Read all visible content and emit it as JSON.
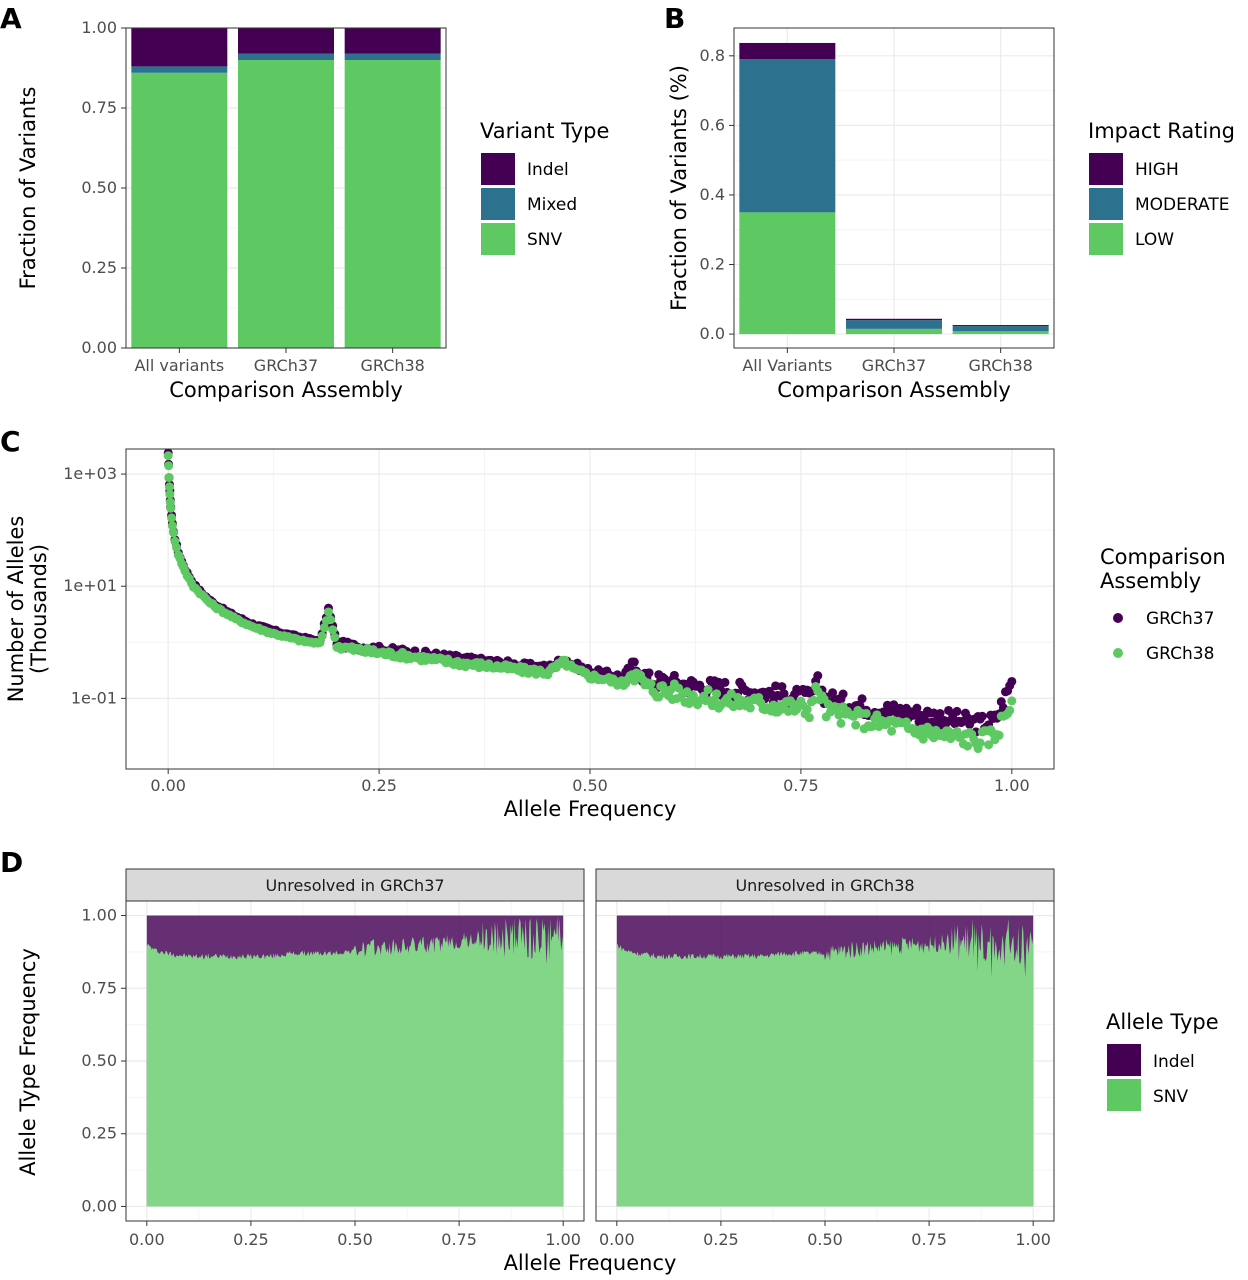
{
  "panels": {
    "A": {
      "letter": "A",
      "chart_data": {
        "type": "bar",
        "stacked": true,
        "title": "",
        "xlabel": "Comparison Assembly",
        "ylabel": "Fraction of Variants",
        "categories": [
          "All variants",
          "GRCh37",
          "GRCh38"
        ],
        "ylim": [
          0,
          1
        ],
        "yticks": [
          "0.00",
          "0.25",
          "0.50",
          "0.75",
          "1.00"
        ],
        "series": [
          {
            "name": "SNV",
            "color": "#5ec962",
            "values": [
              0.86,
              0.9,
              0.9
            ]
          },
          {
            "name": "Mixed",
            "color": "#2c728e",
            "values": [
              0.02,
              0.02,
              0.02
            ]
          },
          {
            "name": "Indel",
            "color": "#440154",
            "values": [
              0.12,
              0.08,
              0.08
            ]
          }
        ],
        "legend_title": "Variant Type",
        "legend_items": [
          "Indel",
          "Mixed",
          "SNV"
        ],
        "legend_position": "right"
      }
    },
    "B": {
      "letter": "B",
      "chart_data": {
        "type": "bar",
        "stacked": true,
        "title": "",
        "xlabel": "Comparison Assembly",
        "ylabel": "Fraction of Variants (%)",
        "categories": [
          "All Variants",
          "GRCh37",
          "GRCh38"
        ],
        "ylim": [
          0,
          0.84
        ],
        "yticks": [
          "0.0",
          "0.2",
          "0.4",
          "0.6",
          "0.8"
        ],
        "series": [
          {
            "name": "LOW",
            "color": "#5ec962",
            "values": [
              0.35,
              0.015,
              0.008
            ]
          },
          {
            "name": "MODERATE",
            "color": "#2c728e",
            "values": [
              0.44,
              0.025,
              0.015
            ]
          },
          {
            "name": "HIGH",
            "color": "#440154",
            "values": [
              0.047,
              0.004,
              0.003
            ]
          }
        ],
        "legend_title": "Impact Rating",
        "legend_items": [
          "HIGH",
          "MODERATE",
          "LOW"
        ],
        "legend_position": "right"
      }
    },
    "C": {
      "letter": "C",
      "chart_data": {
        "type": "scatter",
        "title": "",
        "xlabel": "Allele Frequency",
        "ylabel_line1": "Number of Alleles",
        "ylabel_line2": "(Thousands)",
        "yscale": "log10",
        "xlim": [
          0,
          1
        ],
        "ylim": [
          0.0055,
          2800
        ],
        "xticks": [
          "0.00",
          "0.25",
          "0.50",
          "0.75",
          "1.00"
        ],
        "yticks": [
          "1e-01",
          "1e+01",
          "1e+03"
        ],
        "legend_title_line1": "Comparison",
        "legend_title_line2": "Assembly",
        "series": [
          {
            "name": "GRCh37",
            "color": "#440154",
            "x": [
              0.0,
              0.001,
              0.002,
              0.003,
              0.005,
              0.008,
              0.012,
              0.016,
              0.02,
              0.03,
              0.04,
              0.05,
              0.06,
              0.07,
              0.08,
              0.1,
              0.12,
              0.14,
              0.16,
              0.18,
              0.19,
              0.2,
              0.22,
              0.25,
              0.28,
              0.3,
              0.32,
              0.35,
              0.38,
              0.4,
              0.42,
              0.45,
              0.47,
              0.48,
              0.5,
              0.52,
              0.54,
              0.55,
              0.57,
              0.6,
              0.62,
              0.64,
              0.66,
              0.68,
              0.7,
              0.72,
              0.74,
              0.76,
              0.77,
              0.78,
              0.8,
              0.82,
              0.84,
              0.86,
              0.88,
              0.9,
              0.92,
              0.94,
              0.96,
              0.98,
              1.0
            ],
            "y": [
              2300,
              900,
              480,
              260,
              130,
              70,
              40,
              28,
              20,
              11,
              7.5,
              5.5,
              4.3,
              3.5,
              2.9,
              2.1,
              1.7,
              1.4,
              1.2,
              1.05,
              4.0,
              0.95,
              0.85,
              0.75,
              0.68,
              0.62,
              0.58,
              0.5,
              0.45,
              0.42,
              0.38,
              0.35,
              0.5,
              0.4,
              0.3,
              0.27,
              0.24,
              0.4,
              0.21,
              0.19,
              0.17,
              0.16,
              0.15,
              0.14,
              0.13,
              0.12,
              0.11,
              0.1,
              0.18,
              0.1,
              0.085,
              0.075,
              0.065,
              0.06,
              0.055,
              0.05,
              0.045,
              0.04,
              0.035,
              0.04,
              0.2
            ]
          },
          {
            "name": "GRCh38",
            "color": "#5ec962",
            "x": [
              0.0,
              0.001,
              0.002,
              0.003,
              0.005,
              0.008,
              0.012,
              0.016,
              0.02,
              0.03,
              0.04,
              0.05,
              0.06,
              0.07,
              0.08,
              0.1,
              0.12,
              0.14,
              0.16,
              0.18,
              0.19,
              0.2,
              0.22,
              0.25,
              0.28,
              0.3,
              0.32,
              0.35,
              0.38,
              0.4,
              0.42,
              0.45,
              0.47,
              0.48,
              0.5,
              0.52,
              0.54,
              0.55,
              0.57,
              0.6,
              0.62,
              0.64,
              0.66,
              0.68,
              0.7,
              0.72,
              0.74,
              0.76,
              0.77,
              0.78,
              0.8,
              0.82,
              0.84,
              0.86,
              0.88,
              0.9,
              0.92,
              0.94,
              0.96,
              0.98,
              1.0
            ],
            "y": [
              2200,
              850,
              450,
              240,
              120,
              65,
              37,
              26,
              18,
              10,
              7,
              5,
              3.9,
              3.2,
              2.6,
              1.9,
              1.5,
              1.25,
              1.05,
              0.95,
              3.5,
              0.85,
              0.75,
              0.65,
              0.58,
              0.53,
              0.48,
              0.42,
              0.38,
              0.35,
              0.32,
              0.29,
              0.45,
              0.33,
              0.25,
              0.22,
              0.18,
              0.3,
              0.15,
              0.13,
              0.11,
              0.1,
              0.09,
              0.085,
              0.08,
              0.075,
              0.07,
              0.065,
              0.15,
              0.06,
              0.05,
              0.043,
              0.037,
              0.033,
              0.028,
              0.025,
              0.022,
              0.02,
              0.018,
              0.022,
              0.09
            ]
          }
        ]
      }
    },
    "D": {
      "letter": "D",
      "chart_data": {
        "type": "bar",
        "stacked": true,
        "faceted": true,
        "title": "",
        "xlabel": "Allele Frequency",
        "ylabel": "Allele Type Frequency",
        "xlim": [
          0,
          1
        ],
        "ylim": [
          0,
          1
        ],
        "xticks": [
          "0.00",
          "0.25",
          "0.50",
          "0.75",
          "1.00"
        ],
        "yticks": [
          "0.00",
          "0.25",
          "0.50",
          "0.75",
          "1.00"
        ],
        "legend_title": "Allele Type",
        "legend_items": [
          "Indel",
          "SNV"
        ],
        "series_colors": {
          "Indel": "#440154",
          "SNV": "#5ec962"
        },
        "facets": [
          {
            "label": "Unresolved in GRCh37",
            "x": [
              0.0,
              0.02,
              0.05,
              0.1,
              0.15,
              0.2,
              0.25,
              0.3,
              0.35,
              0.4,
              0.45,
              0.5,
              0.55,
              0.6,
              0.65,
              0.7,
              0.75,
              0.8,
              0.85,
              0.9,
              0.95,
              1.0
            ],
            "snv": [
              0.9,
              0.88,
              0.87,
              0.86,
              0.86,
              0.86,
              0.86,
              0.86,
              0.87,
              0.87,
              0.87,
              0.88,
              0.89,
              0.89,
              0.9,
              0.9,
              0.91,
              0.92,
              0.92,
              0.93,
              0.9,
              0.95
            ]
          },
          {
            "label": "Unresolved in GRCh38",
            "x": [
              0.0,
              0.02,
              0.05,
              0.1,
              0.15,
              0.2,
              0.25,
              0.3,
              0.35,
              0.4,
              0.45,
              0.5,
              0.55,
              0.6,
              0.65,
              0.7,
              0.75,
              0.8,
              0.85,
              0.9,
              0.95,
              1.0
            ],
            "snv": [
              0.9,
              0.88,
              0.87,
              0.86,
              0.86,
              0.86,
              0.86,
              0.86,
              0.86,
              0.87,
              0.87,
              0.87,
              0.88,
              0.89,
              0.89,
              0.9,
              0.9,
              0.91,
              0.91,
              0.9,
              0.88,
              0.92
            ]
          }
        ]
      }
    }
  }
}
